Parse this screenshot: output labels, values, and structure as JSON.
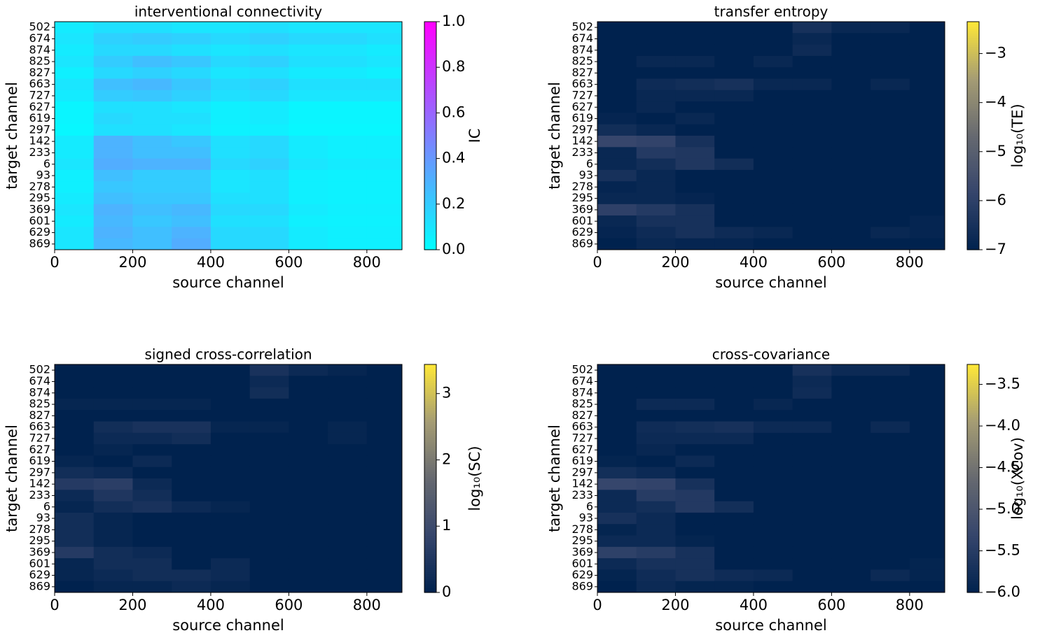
{
  "chart_data": [
    {
      "type": "heatmap",
      "title": "interventional connectivity",
      "xlabel": "source channel",
      "ylabel": "target channel",
      "zlabel": "IC",
      "colormap": "cool",
      "categories": [
        "502",
        "674",
        "874",
        "825",
        "827",
        "663",
        "727",
        "627",
        "619",
        "297",
        "142",
        "233",
        "6",
        "93",
        "278",
        "295",
        "369",
        "601",
        "629",
        "869"
      ],
      "xbins": [
        0,
        100,
        200,
        300,
        400,
        500,
        600,
        700,
        800,
        890
      ],
      "xlim": [
        0,
        890
      ],
      "xticks": [
        0,
        200,
        400,
        600,
        800
      ],
      "zlim": [
        0,
        1
      ],
      "zticks": [
        {
          "value": 0,
          "label": "0.0"
        },
        {
          "value": 0.2,
          "label": "0.2"
        },
        {
          "value": 0.4,
          "label": "0.4"
        },
        {
          "value": 0.6,
          "label": "0.6"
        },
        {
          "value": 0.8,
          "label": "0.8"
        },
        {
          "value": 1,
          "label": "1.0"
        }
      ],
      "z": [
        [
          0.08,
          0.12,
          0.12,
          0.1,
          0.1,
          0.12,
          0.1,
          0.1,
          0.1
        ],
        [
          0.1,
          0.18,
          0.2,
          0.18,
          0.15,
          0.18,
          0.15,
          0.15,
          0.12
        ],
        [
          0.08,
          0.15,
          0.15,
          0.12,
          0.1,
          0.12,
          0.1,
          0.1,
          0.08
        ],
        [
          0.1,
          0.2,
          0.25,
          0.22,
          0.15,
          0.18,
          0.12,
          0.12,
          0.1
        ],
        [
          0.06,
          0.15,
          0.18,
          0.15,
          0.1,
          0.12,
          0.08,
          0.08,
          0.06
        ],
        [
          0.1,
          0.25,
          0.28,
          0.22,
          0.15,
          0.18,
          0.12,
          0.12,
          0.12
        ],
        [
          0.08,
          0.2,
          0.22,
          0.18,
          0.12,
          0.15,
          0.1,
          0.1,
          0.1
        ],
        [
          0.04,
          0.12,
          0.12,
          0.1,
          0.06,
          0.08,
          0.04,
          0.04,
          0.04
        ],
        [
          0.04,
          0.15,
          0.12,
          0.12,
          0.06,
          0.08,
          0.04,
          0.04,
          0.04
        ],
        [
          0.03,
          0.12,
          0.12,
          0.1,
          0.05,
          0.06,
          0.03,
          0.03,
          0.03
        ],
        [
          0.08,
          0.3,
          0.25,
          0.22,
          0.12,
          0.15,
          0.08,
          0.06,
          0.06
        ],
        [
          0.08,
          0.3,
          0.25,
          0.25,
          0.12,
          0.15,
          0.08,
          0.06,
          0.06
        ],
        [
          0.1,
          0.32,
          0.3,
          0.3,
          0.15,
          0.18,
          0.1,
          0.08,
          0.08
        ],
        [
          0.06,
          0.25,
          0.2,
          0.2,
          0.1,
          0.12,
          0.06,
          0.05,
          0.05
        ],
        [
          0.06,
          0.22,
          0.2,
          0.2,
          0.1,
          0.12,
          0.06,
          0.05,
          0.05
        ],
        [
          0.08,
          0.25,
          0.22,
          0.22,
          0.12,
          0.12,
          0.06,
          0.05,
          0.05
        ],
        [
          0.1,
          0.3,
          0.25,
          0.28,
          0.15,
          0.15,
          0.08,
          0.06,
          0.06
        ],
        [
          0.08,
          0.28,
          0.22,
          0.25,
          0.12,
          0.12,
          0.06,
          0.05,
          0.05
        ],
        [
          0.1,
          0.3,
          0.25,
          0.3,
          0.15,
          0.15,
          0.08,
          0.06,
          0.06
        ],
        [
          0.1,
          0.28,
          0.25,
          0.32,
          0.15,
          0.15,
          0.08,
          0.06,
          0.06
        ]
      ]
    },
    {
      "type": "heatmap",
      "title": "transfer entropy",
      "xlabel": "source channel",
      "ylabel": "target channel",
      "zlabel": "log₁₀(TE)",
      "colormap": "cividis",
      "categories": [
        "502",
        "674",
        "874",
        "825",
        "827",
        "663",
        "727",
        "627",
        "619",
        "297",
        "142",
        "233",
        "6",
        "93",
        "278",
        "295",
        "369",
        "601",
        "629",
        "869"
      ],
      "xbins": [
        0,
        100,
        200,
        300,
        400,
        500,
        600,
        700,
        800,
        890
      ],
      "xlim": [
        0,
        890
      ],
      "xticks": [
        0,
        200,
        400,
        600,
        800
      ],
      "zlim": [
        -7,
        -2.35
      ],
      "zticks": [
        {
          "value": -7,
          "label": "−7"
        },
        {
          "value": -6,
          "label": "−6"
        },
        {
          "value": -5,
          "label": "−5"
        },
        {
          "value": -4,
          "label": "−4"
        },
        {
          "value": -3,
          "label": "−3"
        }
      ],
      "z": [
        [
          -7,
          -7,
          -7,
          -7,
          -7,
          -6.5,
          -6.8,
          -6.8,
          -7
        ],
        [
          -7,
          -7,
          -7,
          -7,
          -7,
          -6.8,
          -7,
          -7,
          -7
        ],
        [
          -7,
          -7,
          -7,
          -7,
          -7,
          -6.7,
          -7,
          -7,
          -7
        ],
        [
          -7,
          -6.8,
          -6.8,
          -7,
          -6.8,
          -7,
          -7,
          -7,
          -7
        ],
        [
          -7,
          -7,
          -7,
          -7,
          -7,
          -7,
          -7,
          -7,
          -7
        ],
        [
          -7,
          -6.7,
          -6.6,
          -6.5,
          -6.8,
          -6.8,
          -7,
          -6.8,
          -7
        ],
        [
          -7,
          -6.8,
          -6.8,
          -6.8,
          -7,
          -7,
          -7,
          -7,
          -7
        ],
        [
          -7,
          -6.8,
          -7,
          -7,
          -7,
          -7,
          -7,
          -7,
          -7
        ],
        [
          -6.9,
          -7,
          -6.8,
          -7,
          -7,
          -7,
          -7,
          -7,
          -7
        ],
        [
          -6.6,
          -6.8,
          -7,
          -7,
          -7,
          -7,
          -7,
          -7,
          -7
        ],
        [
          -5.8,
          -5.9,
          -6.5,
          -7,
          -7,
          -7,
          -7,
          -7,
          -7
        ],
        [
          -6.8,
          -6.2,
          -6.3,
          -7,
          -7,
          -7,
          -7,
          -7,
          -7
        ],
        [
          -6.8,
          -6.6,
          -6.3,
          -6.6,
          -7,
          -7,
          -7,
          -7,
          -7
        ],
        [
          -6.5,
          -6.8,
          -7,
          -7,
          -7,
          -7,
          -7,
          -7,
          -7
        ],
        [
          -6.9,
          -6.8,
          -7,
          -7,
          -7,
          -7,
          -7,
          -7,
          -7
        ],
        [
          -6.8,
          -6.8,
          -6.9,
          -7,
          -7,
          -7,
          -7,
          -7,
          -7
        ],
        [
          -6,
          -6.2,
          -6.5,
          -7,
          -7,
          -7,
          -7,
          -7,
          -7
        ],
        [
          -6.8,
          -6.5,
          -6.5,
          -7,
          -7,
          -7,
          -7,
          -7,
          -6.9
        ],
        [
          -6.9,
          -6.7,
          -6.5,
          -6.7,
          -6.8,
          -7,
          -7,
          -6.8,
          -6.9
        ],
        [
          -7,
          -6.8,
          -6.9,
          -6.9,
          -7,
          -7,
          -7,
          -7,
          -7
        ]
      ]
    },
    {
      "type": "heatmap",
      "title": "signed cross-correlation",
      "xlabel": "source channel",
      "ylabel": "target channel",
      "zlabel": "log₁₀(SC)",
      "colormap": "cividis",
      "categories": [
        "502",
        "674",
        "874",
        "825",
        "827",
        "663",
        "727",
        "627",
        "619",
        "297",
        "142",
        "233",
        "6",
        "93",
        "278",
        "295",
        "369",
        "601",
        "629",
        "869"
      ],
      "xbins": [
        0,
        100,
        200,
        300,
        400,
        500,
        600,
        700,
        800,
        890
      ],
      "xlim": [
        0,
        890
      ],
      "xticks": [
        0,
        200,
        400,
        600,
        800
      ],
      "zlim": [
        0,
        3.44
      ],
      "zticks": [
        0,
        1,
        2,
        3
      ],
      "z": [
        [
          0,
          0,
          0,
          0,
          0,
          0.4,
          0.2,
          0.1,
          0
        ],
        [
          0,
          0,
          0,
          0,
          0,
          0.2,
          0,
          0,
          0
        ],
        [
          0,
          0,
          0,
          0,
          0,
          0.3,
          0,
          0,
          0
        ],
        [
          0.1,
          0.1,
          0.1,
          0.1,
          0,
          0,
          0,
          0,
          0
        ],
        [
          0,
          0,
          0,
          0,
          0,
          0,
          0,
          0,
          0
        ],
        [
          0,
          0.3,
          0.4,
          0.4,
          0.1,
          0.1,
          0,
          0.1,
          0
        ],
        [
          0,
          0.2,
          0.2,
          0.3,
          0,
          0,
          0,
          0.1,
          0
        ],
        [
          0,
          0.1,
          0,
          0,
          0,
          0,
          0,
          0,
          0
        ],
        [
          0.1,
          0,
          0.2,
          0,
          0,
          0,
          0,
          0,
          0
        ],
        [
          0.3,
          0.2,
          0,
          0,
          0,
          0,
          0,
          0,
          0
        ],
        [
          0.6,
          0.7,
          0.2,
          0,
          0,
          0,
          0,
          0,
          0
        ],
        [
          0.2,
          0.5,
          0.3,
          0,
          0,
          0,
          0,
          0,
          0
        ],
        [
          0.1,
          0.3,
          0.4,
          0.2,
          0.1,
          0,
          0,
          0,
          0
        ],
        [
          0.3,
          0.1,
          0,
          0,
          0,
          0,
          0,
          0,
          0
        ],
        [
          0.3,
          0.1,
          0,
          0,
          0,
          0,
          0,
          0,
          0
        ],
        [
          0.3,
          0.1,
          0,
          0,
          0,
          0,
          0,
          0,
          0
        ],
        [
          0.6,
          0.3,
          0.2,
          0,
          0,
          0,
          0,
          0,
          0
        ],
        [
          0.1,
          0.3,
          0.3,
          0,
          0.2,
          0,
          0,
          0,
          0
        ],
        [
          0.1,
          0.2,
          0.3,
          0.3,
          0.2,
          0,
          0,
          0,
          0
        ],
        [
          0,
          0.1,
          0.1,
          0.2,
          0.1,
          0,
          0,
          0,
          0
        ]
      ]
    },
    {
      "type": "heatmap",
      "title": "cross-covariance",
      "xlabel": "source channel",
      "ylabel": "target channel",
      "zlabel": "log₁₀(XCov)",
      "colormap": "cividis",
      "categories": [
        "502",
        "674",
        "874",
        "825",
        "827",
        "663",
        "727",
        "627",
        "619",
        "297",
        "142",
        "233",
        "6",
        "93",
        "278",
        "295",
        "369",
        "601",
        "629",
        "869"
      ],
      "xbins": [
        0,
        100,
        200,
        300,
        400,
        500,
        600,
        700,
        800,
        890
      ],
      "xlim": [
        0,
        890
      ],
      "xticks": [
        0,
        200,
        400,
        600,
        800
      ],
      "zlim": [
        -6,
        -3.26
      ],
      "zticks": [
        {
          "value": -6,
          "label": "−6.0"
        },
        {
          "value": -5.5,
          "label": "−5.5"
        },
        {
          "value": -5,
          "label": "−5.0"
        },
        {
          "value": -4.5,
          "label": "−4.5"
        },
        {
          "value": -4,
          "label": "−4.0"
        },
        {
          "value": -3.5,
          "label": "−3.5"
        }
      ],
      "z": [
        [
          -6,
          -6,
          -6,
          -6,
          -6,
          -5.7,
          -5.85,
          -5.85,
          -6
        ],
        [
          -6,
          -6,
          -6,
          -6,
          -6,
          -5.85,
          -6,
          -6,
          -6
        ],
        [
          -6,
          -6,
          -6,
          -6,
          -6,
          -5.8,
          -6,
          -6,
          -6
        ],
        [
          -6,
          -5.85,
          -5.85,
          -6,
          -5.9,
          -6,
          -6,
          -6,
          -6
        ],
        [
          -6,
          -6,
          -6,
          -6,
          -6,
          -6,
          -6,
          -6,
          -6
        ],
        [
          -6,
          -5.8,
          -5.75,
          -5.7,
          -5.85,
          -5.85,
          -6,
          -5.85,
          -6
        ],
        [
          -6,
          -5.85,
          -5.85,
          -5.85,
          -6,
          -6,
          -6,
          -6,
          -6
        ],
        [
          -6,
          -5.9,
          -6,
          -6,
          -6,
          -6,
          -6,
          -6,
          -6
        ],
        [
          -5.95,
          -6,
          -5.85,
          -6,
          -6,
          -6,
          -6,
          -6,
          -6
        ],
        [
          -5.75,
          -5.85,
          -6,
          -6,
          -6,
          -6,
          -6,
          -6,
          -6
        ],
        [
          -5.3,
          -5.35,
          -5.7,
          -6,
          -6,
          -6,
          -6,
          -6,
          -6
        ],
        [
          -5.85,
          -5.5,
          -5.55,
          -6,
          -6,
          -6,
          -6,
          -6,
          -6
        ],
        [
          -5.85,
          -5.75,
          -5.55,
          -5.75,
          -6,
          -6,
          -6,
          -6,
          -6
        ],
        [
          -5.7,
          -5.85,
          -6,
          -6,
          -6,
          -6,
          -6,
          -6,
          -6
        ],
        [
          -5.95,
          -5.85,
          -6,
          -6,
          -6,
          -6,
          -6,
          -6,
          -6
        ],
        [
          -5.85,
          -5.85,
          -5.95,
          -6,
          -6,
          -6,
          -6,
          -6,
          -6
        ],
        [
          -5.4,
          -5.5,
          -5.7,
          -6,
          -6,
          -6,
          -6,
          -6,
          -6
        ],
        [
          -5.85,
          -5.7,
          -5.7,
          -6,
          -6,
          -6,
          -6,
          -6,
          -5.95
        ],
        [
          -5.95,
          -5.8,
          -5.7,
          -5.8,
          -5.85,
          -6,
          -6,
          -5.85,
          -5.95
        ],
        [
          -6,
          -5.85,
          -5.95,
          -5.95,
          -6,
          -6,
          -6,
          -6,
          -6
        ]
      ]
    }
  ]
}
